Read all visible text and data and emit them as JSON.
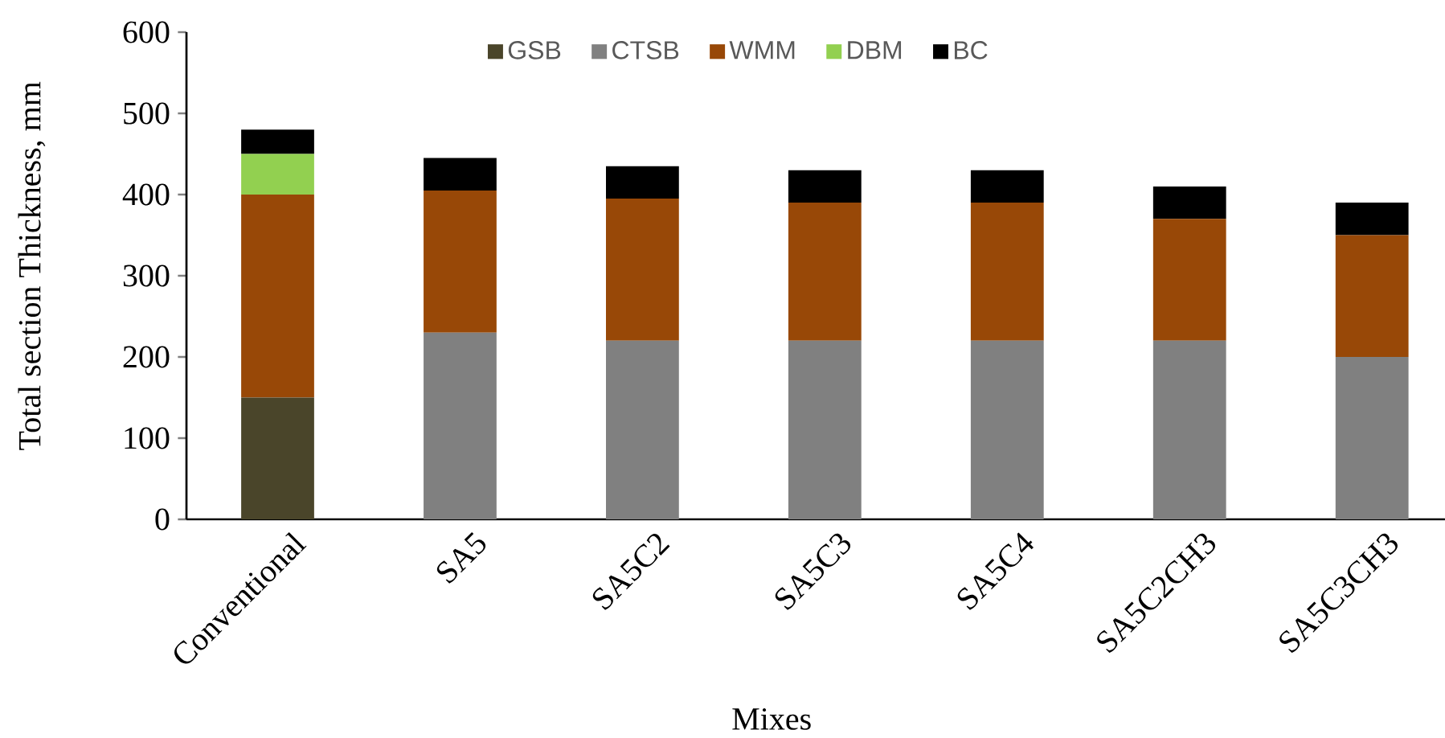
{
  "chart_data": {
    "type": "bar",
    "stacked": true,
    "categories": [
      "Conventional",
      "SA5",
      "SA5C2",
      "SA5C3",
      "SA5C4",
      "SA5C2CH3",
      "SA5C3CH3"
    ],
    "series": [
      {
        "name": "GSB",
        "color": "#4a452a",
        "values": [
          150,
          null,
          null,
          null,
          null,
          null,
          null
        ]
      },
      {
        "name": "CTSB",
        "color": "#808080",
        "values": [
          null,
          230,
          220,
          220,
          220,
          220,
          200
        ]
      },
      {
        "name": "WMM",
        "color": "#984807",
        "values": [
          250,
          175,
          175,
          170,
          170,
          150,
          150
        ]
      },
      {
        "name": "DBM",
        "color": "#92d050",
        "values": [
          50,
          null,
          null,
          null,
          null,
          null,
          null
        ]
      },
      {
        "name": "BC",
        "color": "#000000",
        "values": [
          30,
          40,
          40,
          40,
          40,
          40,
          40
        ]
      }
    ],
    "ylim": [
      0,
      600
    ],
    "yticks": [
      0,
      100,
      200,
      300,
      400,
      500,
      600
    ],
    "xlabel": "Mixes",
    "ylabel": "Total section Thickness, mm",
    "legend": "top"
  }
}
